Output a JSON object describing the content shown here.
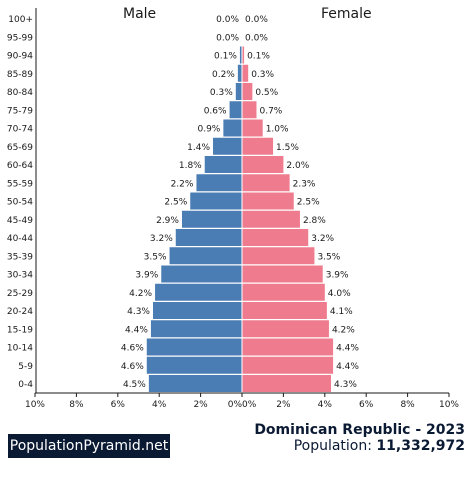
{
  "chart_data": {
    "type": "bar",
    "subtype": "population-pyramid",
    "age_groups": [
      "100+",
      "95-99",
      "90-94",
      "85-89",
      "80-84",
      "75-79",
      "70-74",
      "65-69",
      "60-64",
      "55-59",
      "50-54",
      "45-49",
      "40-44",
      "35-39",
      "30-34",
      "25-29",
      "20-24",
      "15-19",
      "10-14",
      "5-9",
      "0-4"
    ],
    "series": [
      {
        "name": "Male",
        "color": "#4a7db3",
        "side": "left",
        "values": [
          0.0,
          0.0,
          0.1,
          0.2,
          0.3,
          0.6,
          0.9,
          1.4,
          1.8,
          2.2,
          2.5,
          2.9,
          3.2,
          3.5,
          3.9,
          4.2,
          4.3,
          4.4,
          4.6,
          4.6,
          4.5
        ],
        "labels": [
          "0.0%",
          "0.0%",
          "0.1%",
          "0.2%",
          "0.3%",
          "0.6%",
          "0.9%",
          "1.4%",
          "1.8%",
          "2.2%",
          "2.5%",
          "2.9%",
          "3.2%",
          "3.5%",
          "3.9%",
          "4.2%",
          "4.3%",
          "4.4%",
          "4.6%",
          "4.6%",
          "4.5%"
        ]
      },
      {
        "name": "Female",
        "color": "#ef7c8e",
        "side": "right",
        "values": [
          0.0,
          0.0,
          0.1,
          0.3,
          0.5,
          0.7,
          1.0,
          1.5,
          2.0,
          2.3,
          2.5,
          2.8,
          3.2,
          3.5,
          3.9,
          4.0,
          4.1,
          4.2,
          4.4,
          4.4,
          4.3
        ],
        "labels": [
          "0.0%",
          "0.0%",
          "0.1%",
          "0.3%",
          "0.5%",
          "0.7%",
          "1.0%",
          "1.5%",
          "2.0%",
          "2.3%",
          "2.5%",
          "2.8%",
          "3.2%",
          "3.5%",
          "3.9%",
          "4.0%",
          "4.1%",
          "4.2%",
          "4.4%",
          "4.4%",
          "4.3%"
        ]
      }
    ],
    "xlim": [
      0,
      10
    ],
    "x_ticks_left": [
      "10%",
      "8%",
      "6%",
      "4%",
      "2%",
      "0%"
    ],
    "x_ticks_right": [
      "0%",
      "2%",
      "4%",
      "6%",
      "8%",
      "10%"
    ],
    "grid": false
  },
  "labels": {
    "male": "Male",
    "female": "Female"
  },
  "brand": "PopulationPyramid.net",
  "country_year": "Dominican Republic - 2023",
  "population_label": "Population:",
  "population_value": "11,332,972"
}
